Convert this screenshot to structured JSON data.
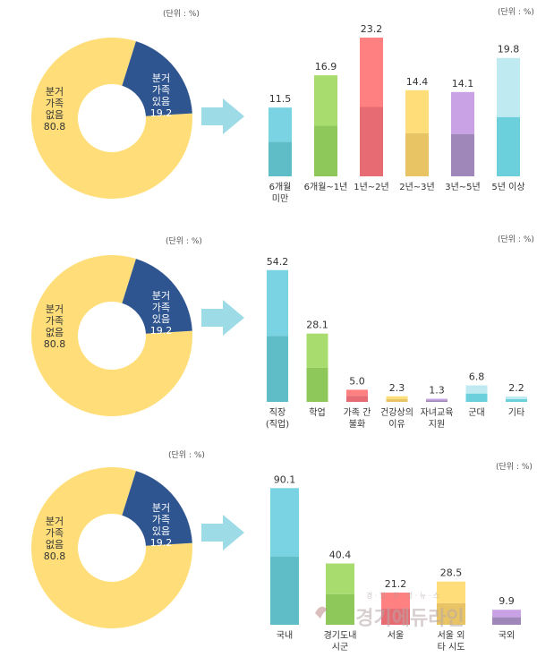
{
  "units": {
    "donut": "(단위 : %)",
    "bars": "(단위 : %)"
  },
  "donut": {
    "segments": [
      {
        "label_lines": [
          "분거",
          "가족",
          "없음"
        ],
        "value": 80.8,
        "value_text": "80.8",
        "color": "#FFDE7A"
      },
      {
        "label_lines": [
          "분거",
          "가족",
          "있음"
        ],
        "value": 19.2,
        "value_text": "19.2",
        "color": "#2F5591"
      }
    ]
  },
  "colors": {
    "arrow": "#9DDCE7",
    "label_light": "#ffffff",
    "label_dark": "#333333"
  },
  "watermark": {
    "tagline": "경 · 향 · 한 · 정 · 뉴 · 스",
    "name": "경기에듀라인"
  },
  "chart_data": [
    {
      "type": "bar",
      "title": "",
      "ylim": [
        0,
        25
      ],
      "categories": [
        "6개월\n미만",
        "6개월~1년",
        "1년~2년",
        "2년~3년",
        "3년~5년",
        "5년 이상"
      ],
      "values": [
        11.5,
        16.9,
        23.2,
        14.4,
        14.1,
        19.8
      ],
      "value_labels": [
        "11.5",
        "16.9",
        "23.2",
        "14.4",
        "14.1",
        "19.8"
      ],
      "colors": [
        [
          "#79D3E3",
          "#5FBDC8"
        ],
        [
          "#A8DC6E",
          "#8FC85A"
        ],
        [
          "#FF8080",
          "#E76B73"
        ],
        [
          "#FFDE7A",
          "#E8C464"
        ],
        [
          "#C8A2E4",
          "#A087BA"
        ],
        [
          "#BFEAF2",
          "#6BCFDC"
        ]
      ]
    },
    {
      "type": "bar",
      "title": "",
      "ylim": [
        0,
        60
      ],
      "categories": [
        "직장\n(직업)",
        "학업",
        "가족 간\n불화",
        "건강상의\n이유",
        "자녀교육\n지원",
        "군대",
        "기타"
      ],
      "values": [
        54.2,
        28.1,
        5.0,
        2.3,
        1.3,
        6.8,
        2.2
      ],
      "value_labels": [
        "54.2",
        "28.1",
        "5.0",
        "2.3",
        "1.3",
        "6.8",
        "2.2"
      ],
      "colors": [
        [
          "#79D3E3",
          "#5FBDC8"
        ],
        [
          "#A8DC6E",
          "#8FC85A"
        ],
        [
          "#FF8080",
          "#E76B73"
        ],
        [
          "#FFDE7A",
          "#E8C464"
        ],
        [
          "#C8A2E4",
          "#A087BA"
        ],
        [
          "#BFEAF2",
          "#6BCFDC"
        ],
        [
          "#BFEAF2",
          "#6BCFDC"
        ]
      ]
    },
    {
      "type": "bar",
      "title": "",
      "ylim": [
        0,
        95
      ],
      "categories": [
        "국내",
        "경기도내\n시군",
        "서울",
        "서울 외\n타 시도",
        "국외"
      ],
      "values": [
        90.1,
        40.4,
        21.2,
        28.5,
        9.9
      ],
      "value_labels": [
        "90.1",
        "40.4",
        "21.2",
        "28.5",
        "9.9"
      ],
      "colors": [
        [
          "#79D3E3",
          "#5FBDC8"
        ],
        [
          "#A8DC6E",
          "#8FC85A"
        ],
        [
          "#FF8080",
          "#E76B73"
        ],
        [
          "#FFDE7A",
          "#E8C464"
        ],
        [
          "#C8A2E4",
          "#A087BA"
        ]
      ]
    }
  ]
}
